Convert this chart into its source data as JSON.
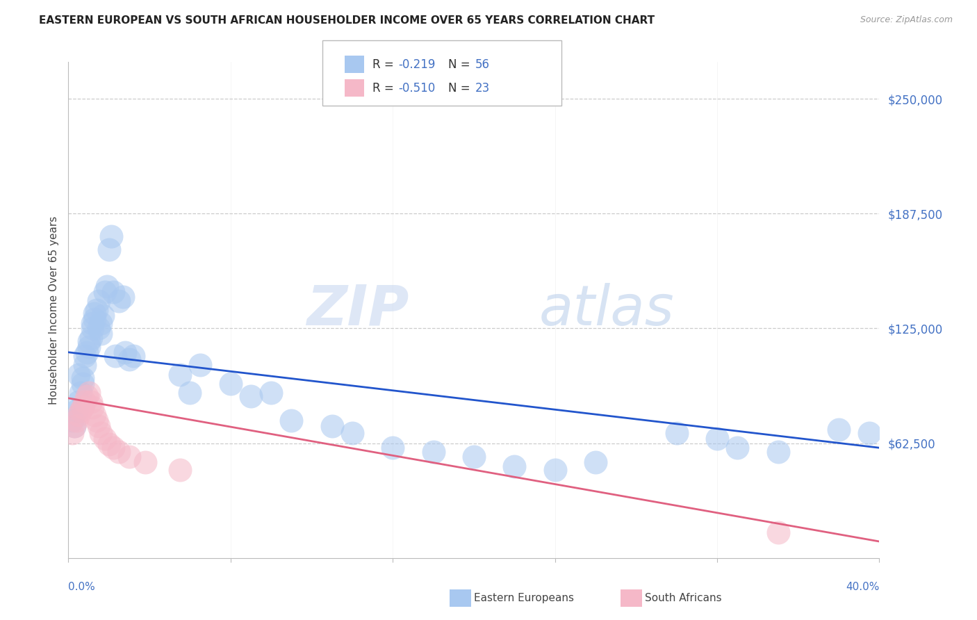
{
  "title": "EASTERN EUROPEAN VS SOUTH AFRICAN HOUSEHOLDER INCOME OVER 65 YEARS CORRELATION CHART",
  "source": "Source: ZipAtlas.com",
  "ylabel": "Householder Income Over 65 years",
  "watermark_zip": "ZIP",
  "watermark_atlas": "atlas",
  "blue_color": "#a8c8f0",
  "pink_color": "#f5b8c8",
  "blue_line_color": "#2255cc",
  "pink_line_color": "#e06080",
  "right_label_color": "#4472c4",
  "legend_text_color": "#4472c4",
  "legend_r_color": "#333333",
  "ytick_labels": [
    "$62,500",
    "$125,000",
    "$187,500",
    "$250,000"
  ],
  "ytick_values": [
    62500,
    125000,
    187500,
    250000
  ],
  "ymax": 270000,
  "ymin": 0,
  "xmax": 0.4,
  "xmin": 0.0,
  "blue_intercept": 112000,
  "blue_slope": -130000,
  "pink_intercept": 87000,
  "pink_slope": -195000,
  "blue_scatter_x": [
    0.002,
    0.003,
    0.004,
    0.005,
    0.005,
    0.006,
    0.007,
    0.007,
    0.008,
    0.008,
    0.009,
    0.01,
    0.01,
    0.011,
    0.012,
    0.012,
    0.013,
    0.013,
    0.014,
    0.015,
    0.015,
    0.016,
    0.016,
    0.017,
    0.018,
    0.019,
    0.02,
    0.021,
    0.022,
    0.023,
    0.025,
    0.027,
    0.028,
    0.03,
    0.032,
    0.055,
    0.06,
    0.065,
    0.08,
    0.09,
    0.1,
    0.11,
    0.13,
    0.14,
    0.16,
    0.18,
    0.2,
    0.22,
    0.24,
    0.26,
    0.3,
    0.32,
    0.33,
    0.35,
    0.38,
    0.395
  ],
  "blue_scatter_y": [
    75000,
    72000,
    80000,
    85000,
    100000,
    90000,
    95000,
    98000,
    110000,
    105000,
    112000,
    115000,
    118000,
    120000,
    125000,
    128000,
    130000,
    133000,
    135000,
    125000,
    140000,
    122000,
    128000,
    132000,
    145000,
    148000,
    168000,
    175000,
    145000,
    110000,
    140000,
    142000,
    112000,
    108000,
    110000,
    100000,
    90000,
    105000,
    95000,
    88000,
    90000,
    75000,
    72000,
    68000,
    60000,
    58000,
    55000,
    50000,
    48000,
    52000,
    68000,
    65000,
    60000,
    58000,
    70000,
    68000
  ],
  "pink_scatter_x": [
    0.002,
    0.003,
    0.004,
    0.005,
    0.006,
    0.007,
    0.008,
    0.009,
    0.01,
    0.011,
    0.012,
    0.013,
    0.014,
    0.015,
    0.016,
    0.018,
    0.02,
    0.022,
    0.025,
    0.03,
    0.038,
    0.055,
    0.35
  ],
  "pink_scatter_y": [
    68000,
    72000,
    75000,
    78000,
    80000,
    82000,
    85000,
    88000,
    90000,
    85000,
    82000,
    78000,
    75000,
    72000,
    68000,
    65000,
    62000,
    60000,
    58000,
    55000,
    52000,
    48000,
    14000
  ]
}
